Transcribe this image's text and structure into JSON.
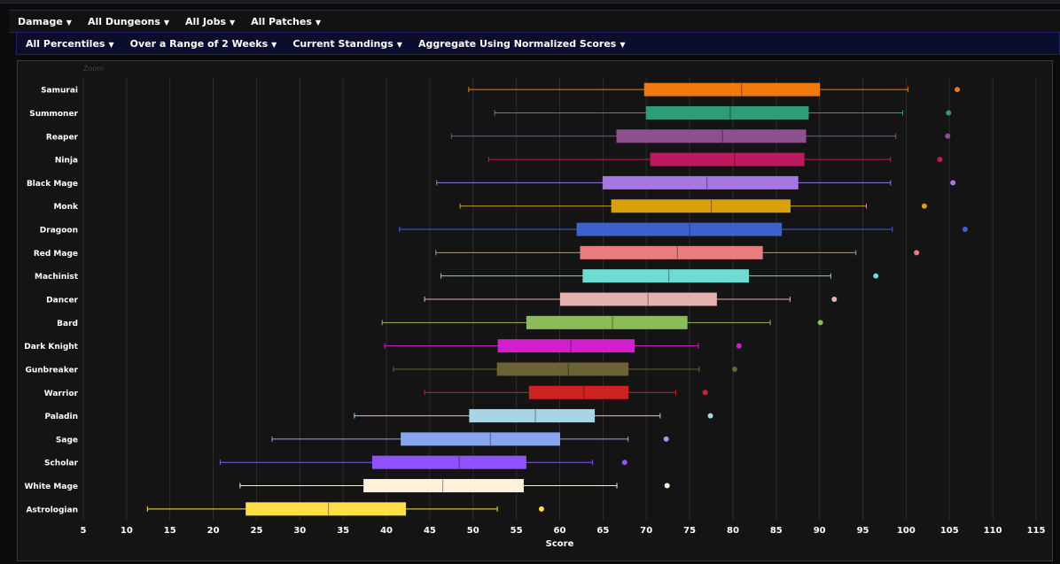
{
  "menus": {
    "row1": [
      {
        "label": "Damage"
      },
      {
        "label": "All Dungeons"
      },
      {
        "label": "All Jobs"
      },
      {
        "label": "All Patches"
      }
    ],
    "row2": [
      {
        "label": "All Percentiles"
      },
      {
        "label": "Over a Range of 2 Weeks"
      },
      {
        "label": "Current Standings"
      },
      {
        "label": "Aggregate Using Normalized Scores"
      }
    ],
    "caret_icon": "chevron-down-icon"
  },
  "zoom_label": "Zoom",
  "chart_data": {
    "type": "boxplot",
    "orientation": "horizontal",
    "xlabel": "Score",
    "xlim": [
      5,
      117
    ],
    "xticks": [
      5,
      10,
      15,
      20,
      25,
      30,
      35,
      40,
      45,
      50,
      55,
      60,
      65,
      70,
      75,
      80,
      85,
      90,
      95,
      100,
      105,
      110,
      115
    ],
    "grid": true,
    "series": [
      {
        "name": "Samurai",
        "min": 49.5,
        "q1": 69.8,
        "median": 81,
        "q3": 90,
        "max": 100.2,
        "outlier": 105.9,
        "color": "#f0790e"
      },
      {
        "name": "Summoner",
        "min": 52.5,
        "q1": 70,
        "median": 79.7,
        "q3": 88.7,
        "max": 99.6,
        "outlier": 104.9,
        "color": "#2e9c74"
      },
      {
        "name": "Reaper",
        "min": 47.5,
        "q1": 66.6,
        "median": 78.8,
        "q3": 88.4,
        "max": 98.8,
        "outlier": 104.8,
        "color": "#8e4f8f"
      },
      {
        "name": "Ninja",
        "min": 51.8,
        "q1": 70.5,
        "median": 80.2,
        "q3": 88.2,
        "max": 98.2,
        "outlier": 103.9,
        "color": "#c0185f"
      },
      {
        "name": "Black Mage",
        "min": 45.8,
        "q1": 65,
        "median": 77,
        "q3": 87.5,
        "max": 98.2,
        "outlier": 105.4,
        "color": "#a577e0"
      },
      {
        "name": "Monk",
        "min": 48.5,
        "q1": 66,
        "median": 77.5,
        "q3": 86.6,
        "max": 95.4,
        "outlier": 102.1,
        "color": "#d8a109"
      },
      {
        "name": "Dragoon",
        "min": 41.5,
        "q1": 62,
        "median": 75,
        "q3": 85.6,
        "max": 98.4,
        "outlier": 106.8,
        "color": "#3e62cd"
      },
      {
        "name": "Red Mage",
        "min": 45.7,
        "q1": 62.4,
        "median": 73.6,
        "q3": 83.4,
        "max": 94.2,
        "outlier": 101.2,
        "color": "#e97c7c"
      },
      {
        "name": "Machinist",
        "min": 46.3,
        "q1": 62.7,
        "median": 72.6,
        "q3": 81.8,
        "max": 91.3,
        "outlier": 96.5,
        "color": "#6ddcd2"
      },
      {
        "name": "Dancer",
        "min": 44.4,
        "q1": 60.1,
        "median": 70.2,
        "q3": 78.1,
        "max": 86.6,
        "outlier": 91.7,
        "color": "#e5b0b0"
      },
      {
        "name": "Bard",
        "min": 39.5,
        "q1": 56.2,
        "median": 66.1,
        "q3": 74.7,
        "max": 84.3,
        "outlier": 90.1,
        "color": "#8cbb5a"
      },
      {
        "name": "Dark Knight",
        "min": 39.8,
        "q1": 52.9,
        "median": 61.3,
        "q3": 68.6,
        "max": 76,
        "outlier": 80.7,
        "color": "#d11fcf"
      },
      {
        "name": "Gunbreaker",
        "min": 40.8,
        "q1": 52.8,
        "median": 61,
        "q3": 67.9,
        "max": 76.1,
        "outlier": 80.2,
        "color": "#6b6236"
      },
      {
        "name": "Warrior",
        "min": 44.4,
        "q1": 56.5,
        "median": 62.8,
        "q3": 67.9,
        "max": 73.4,
        "outlier": 76.8,
        "color": "#cf2121"
      },
      {
        "name": "Paladin",
        "min": 36.3,
        "q1": 49.6,
        "median": 57.2,
        "q3": 64,
        "max": 71.6,
        "outlier": 77.4,
        "color": "#a8d4e5"
      },
      {
        "name": "Sage",
        "min": 26.8,
        "q1": 41.7,
        "median": 52,
        "q3": 60,
        "max": 67.9,
        "outlier": 72.3,
        "color": "#88a6f0"
      },
      {
        "name": "Scholar",
        "min": 20.8,
        "q1": 38.4,
        "median": 48.4,
        "q3": 56.1,
        "max": 63.8,
        "outlier": 67.5,
        "color": "#8f52fa"
      },
      {
        "name": "White Mage",
        "min": 23.1,
        "q1": 37.4,
        "median": 46.5,
        "q3": 55.8,
        "max": 66.6,
        "outlier": 72.4,
        "color": "#fdf1dc"
      },
      {
        "name": "Astrologian",
        "min": 12.4,
        "q1": 23.8,
        "median": 33.3,
        "q3": 42.2,
        "max": 52.8,
        "outlier": 57.9,
        "color": "#ffe04b"
      }
    ]
  }
}
